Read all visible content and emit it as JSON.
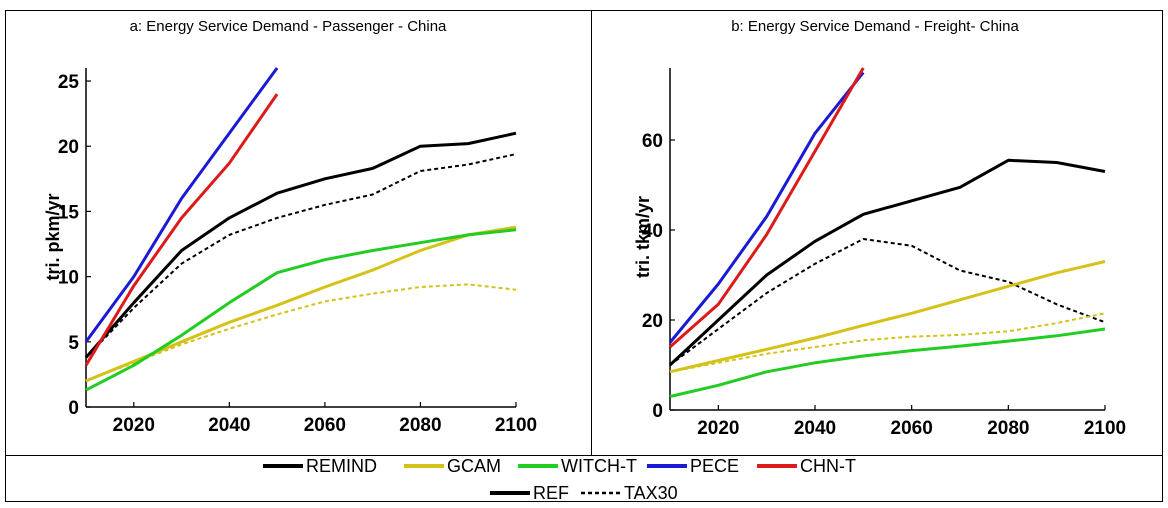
{
  "colors": {
    "REMIND": "#000000",
    "GCAM": "#d4c218",
    "WITCH-T": "#22cc22",
    "PECE": "#1a1ad6",
    "CHN-T": "#dd1a1a"
  },
  "chart_data": [
    {
      "type": "line",
      "title": "a: Energy Service Demand - Passenger - China",
      "xlabel": "",
      "ylabel": "tri. pkm/yr",
      "xlim": [
        2010,
        2100
      ],
      "ylim": [
        0,
        26
      ],
      "xticks": [
        2020,
        2040,
        2060,
        2080,
        2100
      ],
      "yticks": [
        0,
        5,
        10,
        15,
        20,
        25
      ],
      "grid": false,
      "series": [
        {
          "model": "REMIND",
          "scenario": "REF",
          "x": [
            2010,
            2020,
            2030,
            2040,
            2050,
            2060,
            2070,
            2080,
            2090,
            2100
          ],
          "y": [
            3.8,
            8.0,
            12.0,
            14.5,
            16.4,
            17.5,
            18.3,
            20.0,
            20.2,
            21.0
          ]
        },
        {
          "model": "REMIND",
          "scenario": "TAX30",
          "x": [
            2010,
            2020,
            2030,
            2040,
            2050,
            2060,
            2070,
            2080,
            2090,
            2100
          ],
          "y": [
            3.8,
            7.6,
            11.0,
            13.2,
            14.5,
            15.5,
            16.3,
            18.1,
            18.6,
            19.4
          ]
        },
        {
          "model": "GCAM",
          "scenario": "REF",
          "x": [
            2010,
            2020,
            2030,
            2040,
            2050,
            2060,
            2070,
            2080,
            2090,
            2100
          ],
          "y": [
            2.0,
            3.5,
            5.0,
            6.5,
            7.8,
            9.2,
            10.5,
            12.0,
            13.2,
            13.8
          ]
        },
        {
          "model": "GCAM",
          "scenario": "TAX30",
          "x": [
            2010,
            2020,
            2030,
            2040,
            2050,
            2060,
            2070,
            2080,
            2090,
            2100
          ],
          "y": [
            2.0,
            3.4,
            4.8,
            6.0,
            7.1,
            8.1,
            8.7,
            9.2,
            9.4,
            9.0
          ]
        },
        {
          "model": "WITCH-T",
          "scenario": "REF",
          "x": [
            2010,
            2020,
            2030,
            2040,
            2050,
            2060,
            2070,
            2080,
            2090,
            2100
          ],
          "y": [
            1.3,
            3.2,
            5.5,
            8.0,
            10.3,
            11.3,
            12.0,
            12.6,
            13.2,
            13.6
          ]
        },
        {
          "model": "PECE",
          "scenario": "REF",
          "x": [
            2010,
            2020,
            2030,
            2040,
            2050
          ],
          "y": [
            5.0,
            10.0,
            16.0,
            21.0,
            26.0
          ]
        },
        {
          "model": "CHN-T",
          "scenario": "REF",
          "x": [
            2010,
            2020,
            2030,
            2040,
            2050
          ],
          "y": [
            3.2,
            9.3,
            14.5,
            18.7,
            24.0
          ]
        }
      ]
    },
    {
      "type": "line",
      "title": "b: Energy Service Demand - Freight- China",
      "xlabel": "",
      "ylabel": "tri. tkm/yr",
      "xlim": [
        2010,
        2100
      ],
      "ylim": [
        0,
        76
      ],
      "xticks": [
        2020,
        2040,
        2060,
        2080,
        2100
      ],
      "yticks": [
        0,
        20,
        40,
        60
      ],
      "grid": false,
      "series": [
        {
          "model": "REMIND",
          "scenario": "REF",
          "x": [
            2010,
            2020,
            2030,
            2040,
            2050,
            2060,
            2070,
            2080,
            2090,
            2100
          ],
          "y": [
            10.0,
            20.0,
            30.0,
            37.5,
            43.5,
            46.5,
            49.5,
            55.5,
            55.0,
            53.0
          ]
        },
        {
          "model": "REMIND",
          "scenario": "TAX30",
          "x": [
            2010,
            2020,
            2030,
            2040,
            2050,
            2060,
            2070,
            2080,
            2090,
            2100
          ],
          "y": [
            10.0,
            18.0,
            26.0,
            32.5,
            38.0,
            36.5,
            31.0,
            28.5,
            23.5,
            19.5
          ]
        },
        {
          "model": "GCAM",
          "scenario": "REF",
          "x": [
            2010,
            2020,
            2030,
            2040,
            2050,
            2060,
            2070,
            2080,
            2090,
            2100
          ],
          "y": [
            8.5,
            11.0,
            13.5,
            16.0,
            18.8,
            21.5,
            24.5,
            27.5,
            30.5,
            33.0
          ]
        },
        {
          "model": "GCAM",
          "scenario": "TAX30",
          "x": [
            2010,
            2020,
            2030,
            2040,
            2050,
            2060,
            2070,
            2080,
            2090,
            2100
          ],
          "y": [
            8.5,
            10.5,
            12.5,
            14.0,
            15.5,
            16.3,
            16.7,
            17.5,
            19.3,
            21.5
          ]
        },
        {
          "model": "WITCH-T",
          "scenario": "REF",
          "x": [
            2010,
            2020,
            2030,
            2040,
            2050,
            2060,
            2070,
            2080,
            2090,
            2100
          ],
          "y": [
            3.0,
            5.5,
            8.5,
            10.5,
            12.0,
            13.2,
            14.2,
            15.3,
            16.5,
            18.0
          ]
        },
        {
          "model": "PECE",
          "scenario": "REF",
          "x": [
            2010,
            2020,
            2030,
            2040,
            2050
          ],
          "y": [
            15.0,
            28.0,
            43.0,
            61.5,
            75.0
          ]
        },
        {
          "model": "CHN-T",
          "scenario": "REF",
          "x": [
            2010,
            2020,
            2030,
            2040,
            2050
          ],
          "y": [
            14.0,
            23.5,
            39.0,
            57.5,
            76.0
          ]
        }
      ]
    }
  ],
  "legend": {
    "models": [
      "REMIND",
      "GCAM",
      "WITCH-T",
      "PECE",
      "CHN-T"
    ],
    "scenarios": [
      {
        "label": "REF",
        "dash": "solid"
      },
      {
        "label": "TAX30",
        "dash": "dotted"
      }
    ]
  }
}
